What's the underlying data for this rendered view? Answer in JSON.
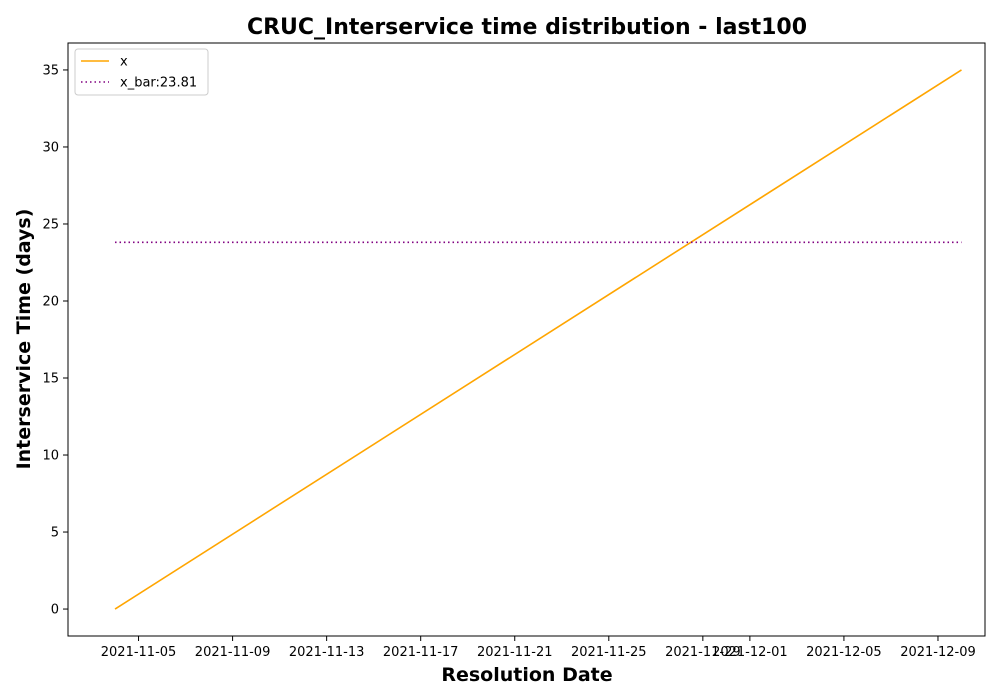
{
  "chart_data": {
    "type": "line",
    "title": "CRUC_Interservice time distribution - last100",
    "xlabel": "Resolution Date",
    "ylabel": "Interservice Time (days)",
    "x_tick_labels": [
      "2021-11-05",
      "2021-11-09",
      "2021-11-13",
      "2021-11-17",
      "2021-11-21",
      "2021-11-25",
      "2021-11-29",
      "2021-12-01",
      "2021-12-05",
      "2021-12-09"
    ],
    "x_tick_dates": [
      "2021-11-05",
      "2021-11-09",
      "2021-11-13",
      "2021-11-17",
      "2021-11-21",
      "2021-11-25",
      "2021-11-29",
      "2021-12-01",
      "2021-12-05",
      "2021-12-09"
    ],
    "y_ticks": [
      0,
      5,
      10,
      15,
      20,
      25,
      30,
      35
    ],
    "xlim": [
      "2021-11-02",
      "2021-12-11"
    ],
    "ylim": [
      -1.75,
      36.75
    ],
    "grid": false,
    "legend_position": "top-left",
    "series": [
      {
        "name": "x",
        "color": "#FFA500",
        "style": "solid",
        "points": [
          {
            "x": "2021-11-04",
            "y": 0
          },
          {
            "x": "2021-11-04",
            "y": 0
          },
          {
            "x": "2021-12-10",
            "y": 35
          }
        ]
      },
      {
        "name": "x_bar:23.81",
        "color": "#800080",
        "style": "dotted",
        "points": [
          {
            "x": "2021-11-04",
            "y": 23.81
          },
          {
            "x": "2021-12-10",
            "y": 23.81
          }
        ]
      }
    ]
  }
}
